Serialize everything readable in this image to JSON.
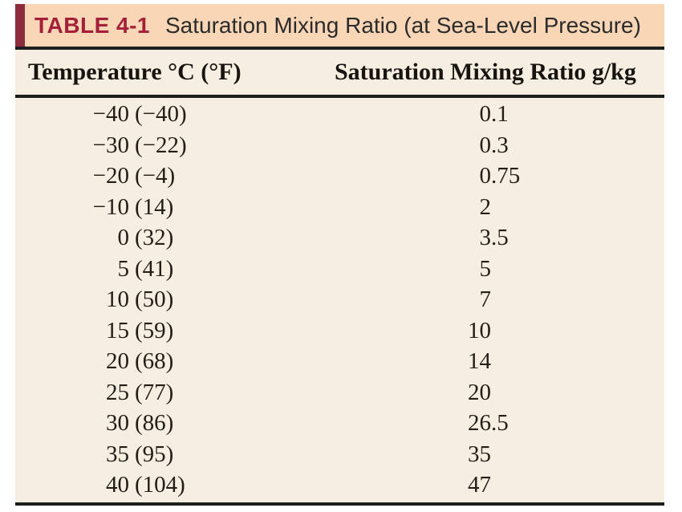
{
  "table": {
    "label": "TABLE 4-1",
    "title": "Saturation Mixing Ratio (at Sea-Level Pressure)",
    "columns": [
      "Temperature °C (°F)",
      "Saturation Mixing Ratio g/kg"
    ],
    "rows": [
      {
        "temp_c": "−40",
        "temp_f": "(−40)",
        "ratio": "0.1"
      },
      {
        "temp_c": "−30",
        "temp_f": "(−22)",
        "ratio": "0.3"
      },
      {
        "temp_c": "−20",
        "temp_f": "(−4)",
        "ratio": "0.75"
      },
      {
        "temp_c": "−10",
        "temp_f": "(14)",
        "ratio": "2"
      },
      {
        "temp_c": "0",
        "temp_f": "(32)",
        "ratio": "3.5"
      },
      {
        "temp_c": "5",
        "temp_f": "(41)",
        "ratio": "5"
      },
      {
        "temp_c": "10",
        "temp_f": "(50)",
        "ratio": "7"
      },
      {
        "temp_c": "15",
        "temp_f": "(59)",
        "ratio": "10"
      },
      {
        "temp_c": "20",
        "temp_f": "(68)",
        "ratio": "14"
      },
      {
        "temp_c": "25",
        "temp_f": "(77)",
        "ratio": "20"
      },
      {
        "temp_c": "30",
        "temp_f": "(86)",
        "ratio": "26.5"
      },
      {
        "temp_c": "35",
        "temp_f": "(95)",
        "ratio": "35"
      },
      {
        "temp_c": "40",
        "temp_f": "(104)",
        "ratio": "47"
      }
    ]
  },
  "colors": {
    "title_band_bg": "#f9d6b6",
    "accent_bar": "#8d2c3c",
    "table_label_red": "#a41f38",
    "body_bg": "#f6eee1",
    "rule": "#1e1e1e",
    "text": "#221d17"
  }
}
